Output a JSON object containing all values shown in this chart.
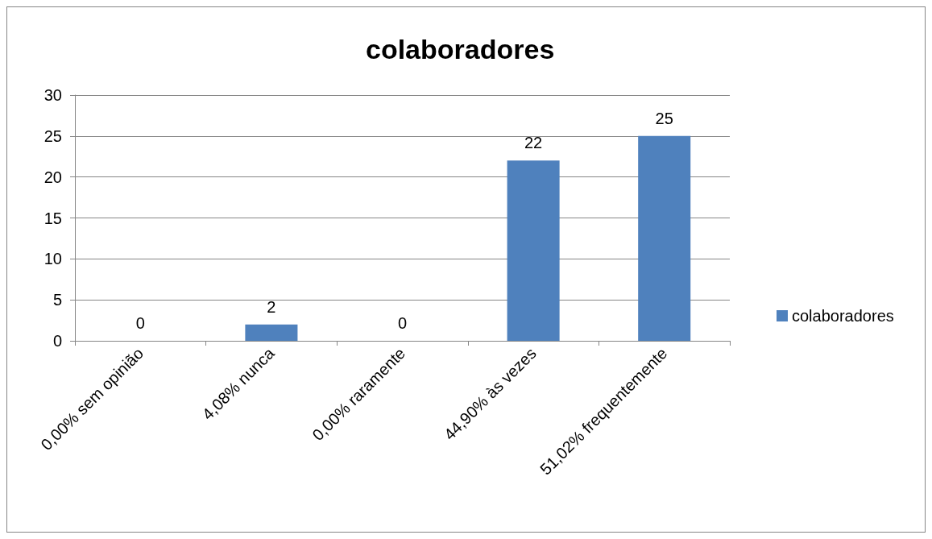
{
  "chart_data": {
    "type": "bar",
    "title": "colaboradores",
    "categories": [
      "0,00% sem opinião",
      "4,08% nunca",
      "0,00% raramente",
      "44,90% às vezes",
      "51,02% frequentemente"
    ],
    "series": [
      {
        "name": "colaboradores",
        "color": "#4f81bd",
        "values": [
          0,
          2,
          0,
          22,
          25
        ]
      }
    ],
    "ylim": [
      0,
      30
    ],
    "yticks": [
      0,
      5,
      10,
      15,
      20,
      25,
      30
    ],
    "grid": "y",
    "legend": "right",
    "data_labels": true
  }
}
